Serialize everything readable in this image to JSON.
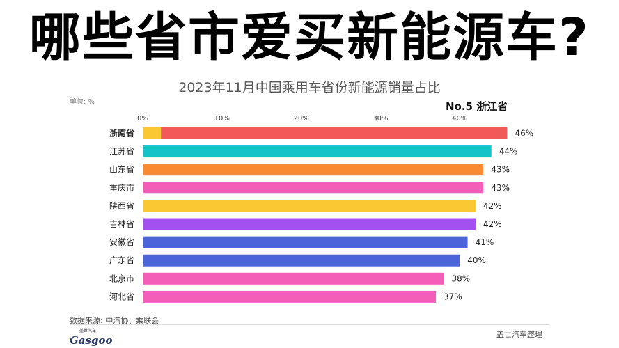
{
  "headline": "哪些省市爱买新能源车?",
  "unit_label": "单位: %",
  "rank_label": "No.5 浙江省",
  "source": "数据来源: 中汽协、乘联会",
  "logo": {
    "cn": "盖世汽车",
    "en": "Gasgoo"
  },
  "credit": "盖世汽车整理",
  "chart_data": {
    "type": "bar",
    "orientation": "horizontal",
    "title": "2023年11月中国乘用车省份新能源销量占比",
    "xlim": [
      0,
      47
    ],
    "xticks": [
      0,
      10,
      20,
      30,
      40
    ],
    "xtick_labels": [
      "0%",
      "10%",
      "20%",
      "30%",
      "40%"
    ],
    "categories": [
      "浙南省",
      "江苏省",
      "山东省",
      "重庆市",
      "陕西省",
      "吉林省",
      "安徽省",
      "广东省",
      "北京市",
      "河北省"
    ],
    "values": [
      46,
      44,
      43,
      43,
      42,
      42,
      41,
      40,
      38,
      37
    ],
    "value_labels": [
      "46%",
      "44%",
      "43%",
      "43%",
      "42%",
      "42%",
      "41%",
      "40%",
      "38%",
      "37%"
    ],
    "colors": [
      "#f25a5a",
      "#13c3c8",
      "#fa8a32",
      "#f55eb8",
      "#fac832",
      "#a44ff0",
      "#4d63d9",
      "#4d63d9",
      "#f55eb8",
      "#f55eb8"
    ],
    "first_bar_segment": {
      "value": 2.3,
      "color": "#fac832"
    },
    "grid": false
  }
}
